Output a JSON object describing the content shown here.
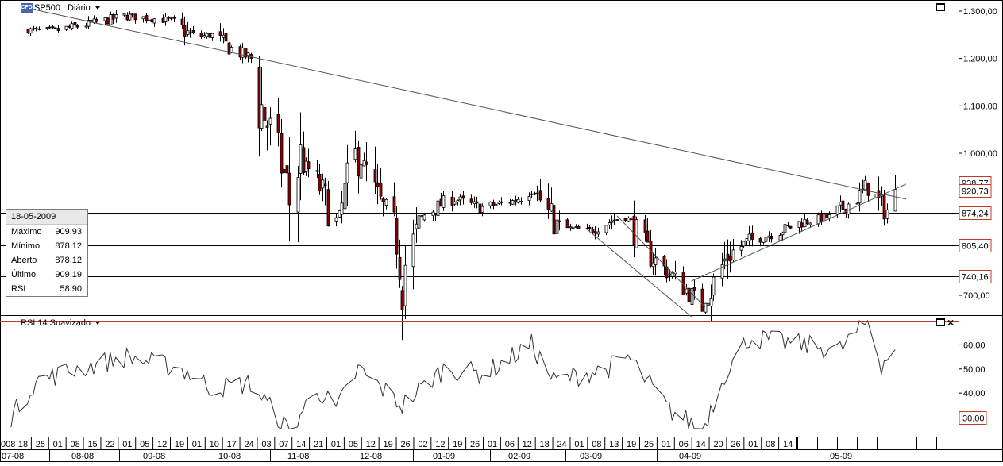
{
  "header": {
    "instrument_label": "SP500 | Diário",
    "logo_text": "CFD",
    "indicator_label": "RSI 14 Suavizado"
  },
  "info_box": {
    "date": "18-05-2009",
    "rows": [
      {
        "label": "Máximo",
        "value": "909,93"
      },
      {
        "label": "Mínimo",
        "value": "878,12"
      },
      {
        "label": "Aberto",
        "value": "878,12"
      },
      {
        "label": "Último",
        "value": "909,19"
      },
      {
        "label": "RSI",
        "value": "58,90"
      }
    ]
  },
  "colors": {
    "up": "#ffffff",
    "down": "#8b0000",
    "candle_outline": "#000000",
    "level_label_border": "#c0392b",
    "rsi_upper": "#c0392b",
    "rsi_lower": "#2e8b2e"
  },
  "chart_data": [
    {
      "type": "candlestick",
      "ylim": [
        630,
        1320
      ],
      "y_ticks": [
        "1.300,00",
        "1.200,00",
        "1.100,00",
        "1.000,00",
        "700,00"
      ],
      "y_tick_values": [
        1300,
        1200,
        1100,
        1000,
        700
      ],
      "day_ticks": [
        "008",
        "18",
        "25",
        "01",
        "08",
        "15",
        "22",
        "01",
        "05",
        "12",
        "19",
        "01",
        "10",
        "17",
        "24",
        "03",
        "07",
        "14",
        "21",
        "01",
        "05",
        "12",
        "19",
        "26",
        "02",
        "12",
        "19",
        "26",
        "01",
        "06",
        "12",
        "18",
        "24",
        "01",
        "08",
        "13",
        "19",
        "25",
        "01",
        "06",
        "14",
        "20",
        "26",
        "01",
        "08",
        "14"
      ],
      "month_labels": [
        "07-08",
        "08-08",
        "09-08",
        "10-08",
        "11-08",
        "12-08",
        "01-09",
        "02-09",
        "03-09",
        "04-09",
        "05-09"
      ],
      "levels": [
        {
          "value": 938.77,
          "label": "938,77"
        },
        {
          "value": 920.73,
          "label": "920,73",
          "dashed": true
        },
        {
          "value": 874.24,
          "label": "874,24"
        },
        {
          "value": 805.4,
          "label": "805,40"
        },
        {
          "value": 740.16,
          "label": "740,16"
        }
      ],
      "trendlines": [
        {
          "from": {
            "date": "2008-07-08",
            "value": 1305
          },
          "to": {
            "date": "2009-05-22",
            "value": 903
          }
        },
        {
          "from": {
            "date": "2009-02-06",
            "value": 868
          },
          "to": {
            "date": "2009-03-10",
            "value": 675
          }
        },
        {
          "from": {
            "date": "2009-01-26",
            "value": 840
          },
          "to": {
            "date": "2009-03-05",
            "value": 655
          }
        },
        {
          "from": {
            "date": "2009-03-05",
            "value": 730
          },
          "to": {
            "date": "2009-05-22",
            "value": 935
          }
        }
      ],
      "anchors": [
        {
          "date": "2008-07-05",
          "value": 1260
        },
        {
          "date": "2008-07-18",
          "value": 1260
        },
        {
          "date": "2008-07-31",
          "value": 1275
        },
        {
          "date": "2008-08-12",
          "value": 1290
        },
        {
          "date": "2008-08-28",
          "value": 1280
        },
        {
          "date": "2008-09-05",
          "value": 1245
        },
        {
          "date": "2008-09-12",
          "value": 1250
        },
        {
          "date": "2008-09-19",
          "value": 1220
        },
        {
          "date": "2008-09-26",
          "value": 1200
        },
        {
          "date": "2008-09-29",
          "value": 1110
        },
        {
          "date": "2008-10-06",
          "value": 1000
        },
        {
          "date": "2008-10-10",
          "value": 900
        },
        {
          "date": "2008-10-14",
          "value": 990
        },
        {
          "date": "2008-10-20",
          "value": 940
        },
        {
          "date": "2008-10-27",
          "value": 848
        },
        {
          "date": "2008-11-04",
          "value": 1005
        },
        {
          "date": "2008-11-10",
          "value": 910
        },
        {
          "date": "2008-11-17",
          "value": 850
        },
        {
          "date": "2008-11-20",
          "value": 752
        },
        {
          "date": "2008-11-28",
          "value": 870
        },
        {
          "date": "2008-12-08",
          "value": 905
        },
        {
          "date": "2008-12-18",
          "value": 885
        },
        {
          "date": "2008-12-31",
          "value": 900
        },
        {
          "date": "2009-01-06",
          "value": 930
        },
        {
          "date": "2009-01-15",
          "value": 845
        },
        {
          "date": "2009-01-26",
          "value": 835
        },
        {
          "date": "2009-02-09",
          "value": 870
        },
        {
          "date": "2009-02-17",
          "value": 790
        },
        {
          "date": "2009-02-27",
          "value": 735
        },
        {
          "date": "2009-03-09",
          "value": 676
        },
        {
          "date": "2009-03-18",
          "value": 785
        },
        {
          "date": "2009-03-26",
          "value": 815
        },
        {
          "date": "2009-04-06",
          "value": 835
        },
        {
          "date": "2009-04-14",
          "value": 855
        },
        {
          "date": "2009-04-24",
          "value": 865
        },
        {
          "date": "2009-05-04",
          "value": 905
        },
        {
          "date": "2009-05-08",
          "value": 930
        },
        {
          "date": "2009-05-13",
          "value": 885
        },
        {
          "date": "2009-05-15",
          "value": 880
        },
        {
          "date": "2009-05-18",
          "value": 909
        }
      ]
    },
    {
      "type": "line",
      "series": [
        {
          "name": "RSI 14 Suavizado"
        }
      ],
      "ylim": [
        20,
        70
      ],
      "y_ticks": [
        "60,00",
        "50,00",
        "40,00"
      ],
      "y_tick_values": [
        60,
        50,
        40
      ],
      "levels": [
        {
          "value": 70,
          "label": ""
        },
        {
          "value": 30,
          "label": "30,00"
        }
      ],
      "anchors": [
        {
          "date": "2008-07-01",
          "value": 30
        },
        {
          "date": "2008-07-10",
          "value": 45
        },
        {
          "date": "2008-07-25",
          "value": 50
        },
        {
          "date": "2008-08-12",
          "value": 55
        },
        {
          "date": "2008-09-01",
          "value": 50
        },
        {
          "date": "2008-09-12",
          "value": 42
        },
        {
          "date": "2008-09-26",
          "value": 44
        },
        {
          "date": "2008-10-06",
          "value": 30
        },
        {
          "date": "2008-10-10",
          "value": 24
        },
        {
          "date": "2008-10-20",
          "value": 42
        },
        {
          "date": "2008-10-27",
          "value": 33
        },
        {
          "date": "2008-11-04",
          "value": 50
        },
        {
          "date": "2008-11-20",
          "value": 35
        },
        {
          "date": "2008-12-05",
          "value": 50
        },
        {
          "date": "2008-12-20",
          "value": 48
        },
        {
          "date": "2009-01-06",
          "value": 60
        },
        {
          "date": "2009-01-14",
          "value": 45
        },
        {
          "date": "2009-02-02",
          "value": 50
        },
        {
          "date": "2009-02-10",
          "value": 55
        },
        {
          "date": "2009-02-25",
          "value": 33
        },
        {
          "date": "2009-03-09",
          "value": 25
        },
        {
          "date": "2009-03-18",
          "value": 50
        },
        {
          "date": "2009-03-26",
          "value": 63
        },
        {
          "date": "2009-04-14",
          "value": 60
        },
        {
          "date": "2009-04-28",
          "value": 58
        },
        {
          "date": "2009-05-08",
          "value": 70
        },
        {
          "date": "2009-05-13",
          "value": 52
        },
        {
          "date": "2009-05-18",
          "value": 59
        }
      ]
    }
  ]
}
